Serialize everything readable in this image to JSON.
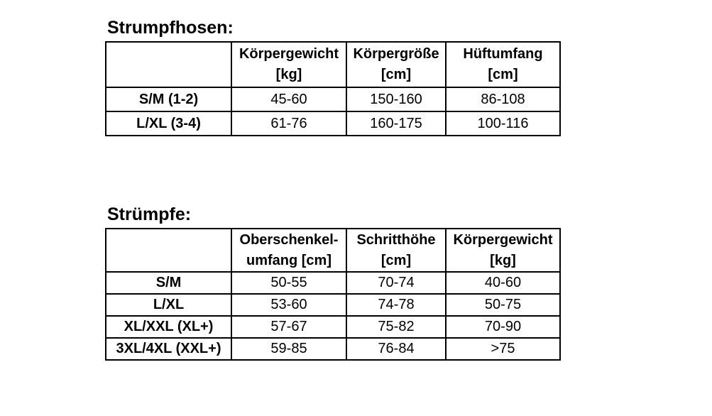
{
  "page": {
    "background_color": "#ffffff",
    "text_color": "#000000",
    "border_color": "#000000"
  },
  "tables": [
    {
      "title": "Strumpfhosen:",
      "columns": [
        {
          "line1": "",
          "line2": ""
        },
        {
          "line1": "Körpergewicht",
          "line2": "[kg]"
        },
        {
          "line1": "Körpergröße",
          "line2": "[cm]"
        },
        {
          "line1": "Hüftumfang",
          "line2": "[cm]"
        }
      ],
      "rows": [
        {
          "label": "S/M (1-2)",
          "values": [
            "45-60",
            "150-160",
            "86-108"
          ]
        },
        {
          "label": "L/XL (3-4)",
          "values": [
            "61-76",
            "160-175",
            "100-116"
          ]
        }
      ]
    },
    {
      "title": "Strümpfe:",
      "columns": [
        {
          "line1": "",
          "line2": ""
        },
        {
          "line1": "Oberschenkel-",
          "line2": "umfang [cm]"
        },
        {
          "line1": "Schritthöhe",
          "line2": "[cm]"
        },
        {
          "line1": "Körpergewicht",
          "line2": "[kg]"
        }
      ],
      "rows": [
        {
          "label": "S/M",
          "values": [
            "50-55",
            "70-74",
            "40-60"
          ]
        },
        {
          "label": "L/XL",
          "values": [
            "53-60",
            "74-78",
            "50-75"
          ]
        },
        {
          "label": "XL/XXL (XL+)",
          "values": [
            "57-67",
            "75-82",
            "70-90"
          ]
        },
        {
          "label": "3XL/4XL (XXL+)",
          "values": [
            "59-85",
            "76-84",
            ">75"
          ]
        }
      ]
    }
  ]
}
